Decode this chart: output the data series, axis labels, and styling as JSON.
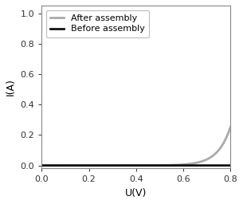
{
  "title": "",
  "xlabel": "U(V)",
  "ylabel": "I(A)",
  "xlim": [
    0,
    0.8
  ],
  "ylim": [
    -0.02,
    1.05
  ],
  "xticks": [
    0,
    0.2,
    0.4,
    0.6,
    0.8
  ],
  "yticks": [
    0,
    0.2,
    0.4,
    0.6,
    0.8,
    1.0
  ],
  "before_color": "#111111",
  "after_color": "#aaaaaa",
  "before_label": "Before assembly",
  "after_label": "After assembly",
  "diode_Is_before": 1e-09,
  "diode_n_before": 2.6,
  "diode_Is_after": 1e-07,
  "diode_n_after": 2.1,
  "vt": 0.02585,
  "linewidth": 2.0,
  "legend_fontsize": 8.0,
  "tick_fontsize": 8,
  "label_fontsize": 9,
  "background_color": "#ffffff"
}
